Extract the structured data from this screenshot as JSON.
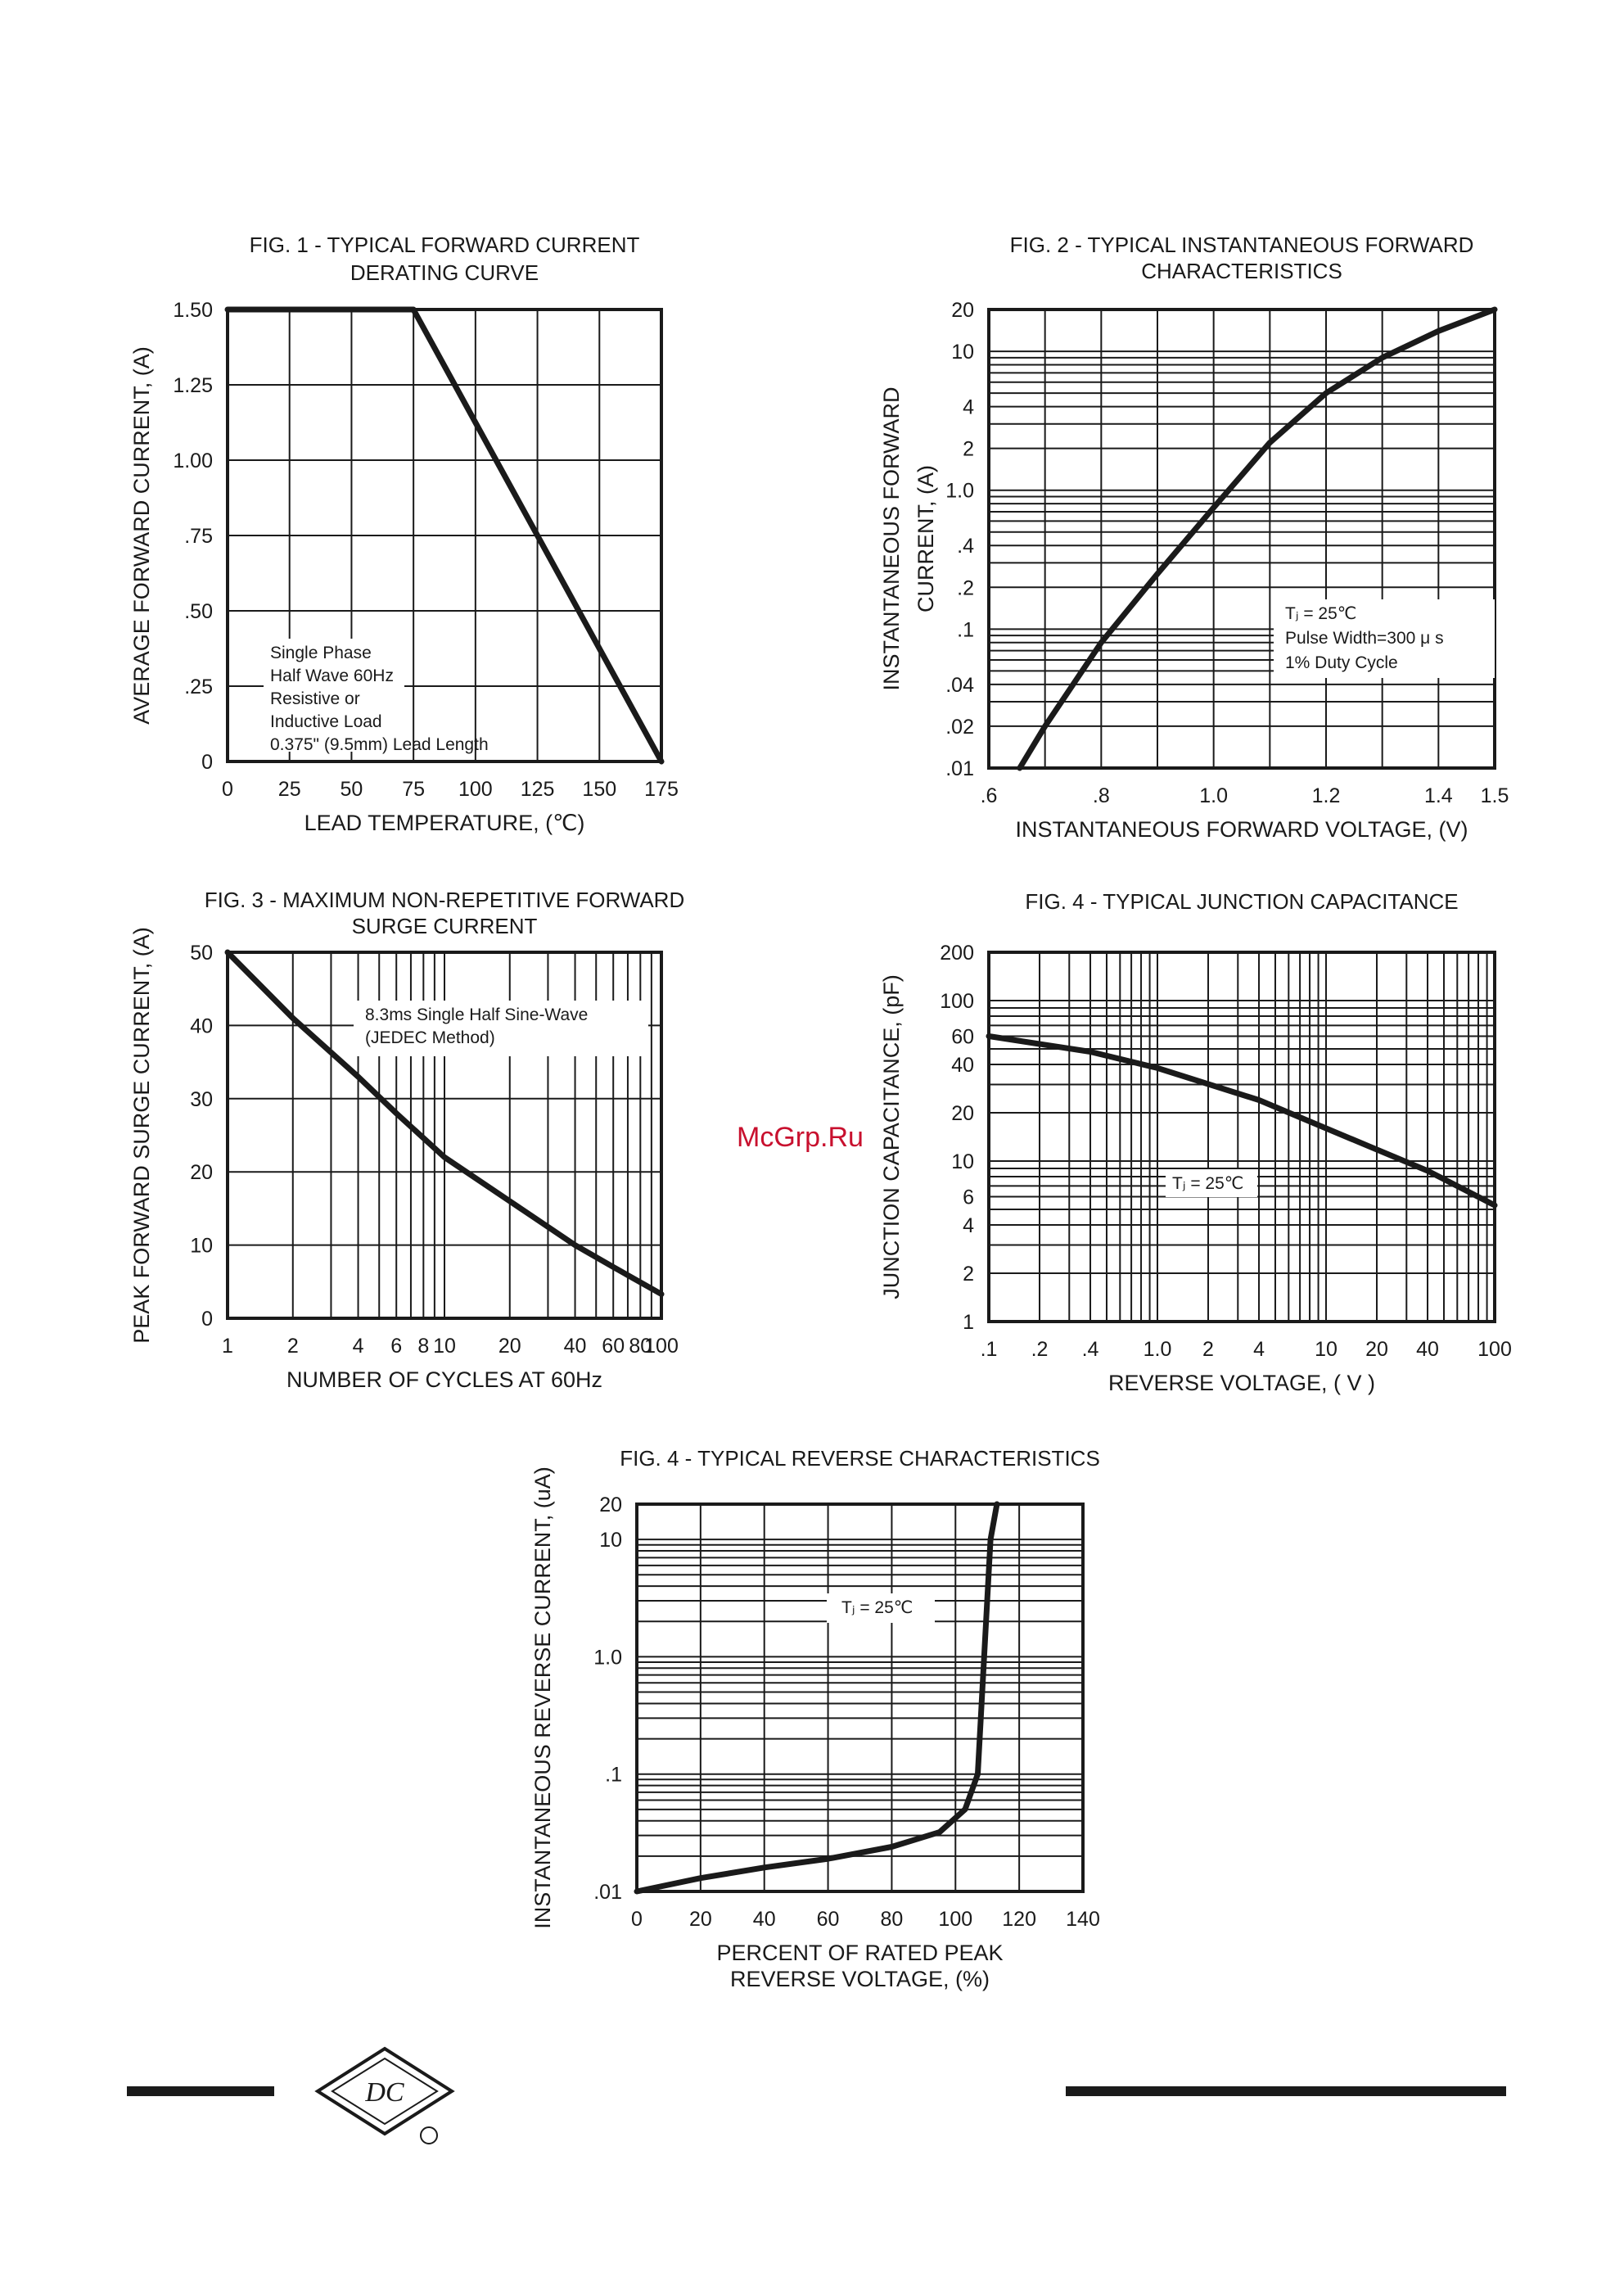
{
  "watermark": "McGrp.Ru",
  "logo": {
    "text": "DC",
    "registered_mark": "circle"
  },
  "colors": {
    "ink": "#1a1a1a",
    "watermark": "#c8102e",
    "background": "#ffffff"
  },
  "chart_data": [
    {
      "id": "fig1",
      "type": "line",
      "title": [
        "FIG. 1 - TYPICAL FORWARD CURRENT",
        "DERATING CURVE"
      ],
      "xlabel": "LEAD TEMPERATURE, (℃)",
      "ylabel": "AVERAGE FORWARD  CURRENT, (A)",
      "x_scale": "linear",
      "y_scale": "linear",
      "xlim": [
        0,
        175
      ],
      "ylim": [
        0,
        1.5
      ],
      "x_ticks": [
        0,
        25,
        50,
        75,
        100,
        125,
        150,
        175
      ],
      "x_tick_labels": [
        "0",
        "25",
        "50",
        "75",
        "100",
        "125",
        "150",
        "175"
      ],
      "y_ticks": [
        0,
        0.25,
        0.5,
        0.75,
        1.0,
        1.25,
        1.5
      ],
      "y_tick_labels": [
        "0",
        ".25",
        ".50",
        ".75",
        "1.00",
        "1.25",
        "1.50"
      ],
      "grid": "on",
      "annotation": [
        "Single Phase",
        "Half Wave 60Hz",
        "Resistive or",
        "Inductive Load",
        "0.375\" (9.5mm) Lead Length"
      ],
      "series": [
        {
          "x": [
            0,
            75,
            175
          ],
          "y": [
            1.5,
            1.5,
            0
          ]
        }
      ]
    },
    {
      "id": "fig2",
      "type": "line",
      "title": [
        "FIG. 2 - TYPICAL INSTANTANEOUS FORWARD",
        "CHARACTERISTICS"
      ],
      "xlabel": "INSTANTANEOUS FORWARD VOLTAGE, (V)",
      "ylabel": [
        "INSTANTANEOUS FORWARD",
        "CURRENT, (A)"
      ],
      "x_scale": "linear",
      "y_scale": "log",
      "xlim": [
        0.6,
        1.5
      ],
      "ylim": [
        0.01,
        20
      ],
      "x_ticks": [
        0.6,
        0.7,
        0.8,
        0.9,
        1.0,
        1.1,
        1.2,
        1.3,
        1.4,
        1.5
      ],
      "x_tick_labels": [
        ".6",
        "",
        ".8",
        "",
        "1.0",
        "",
        "1.2",
        "",
        "1.4",
        "1.5"
      ],
      "y_ticks": [
        0.01,
        0.02,
        0.04,
        0.1,
        0.2,
        0.4,
        1,
        2,
        4,
        10,
        20
      ],
      "y_tick_labels": [
        ".01",
        ".02",
        ".04",
        ".1",
        ".2",
        ".4",
        "1.0",
        "2",
        "4",
        "10",
        "20"
      ],
      "grid": "on",
      "annotation": [
        "Tⱼ = 25℃",
        "Pulse Width=300 μ s",
        "1% Duty Cycle"
      ],
      "series": [
        {
          "x": [
            0.655,
            0.7,
            0.8,
            0.9,
            1.0,
            1.1,
            1.2,
            1.3,
            1.4,
            1.5
          ],
          "y": [
            0.01,
            0.02,
            0.08,
            0.25,
            0.75,
            2.2,
            5.0,
            9.0,
            14.0,
            20.0
          ]
        }
      ]
    },
    {
      "id": "fig3",
      "type": "line",
      "title": [
        "FIG. 3 - MAXIMUM NON-REPETITIVE FORWARD",
        "SURGE CURRENT"
      ],
      "xlabel": "NUMBER OF CYCLES AT 60Hz",
      "ylabel": "PEAK FORWARD SURGE CURRENT, (A)",
      "x_scale": "log",
      "y_scale": "linear",
      "xlim": [
        1,
        100
      ],
      "ylim": [
        0,
        50
      ],
      "x_ticks": [
        1,
        2,
        4,
        6,
        8,
        10,
        20,
        40,
        60,
        80,
        100
      ],
      "x_tick_labels": [
        "1",
        "2",
        "4",
        "6",
        "8",
        "10",
        "20",
        "40",
        "60",
        "80",
        "100"
      ],
      "y_ticks": [
        0,
        10,
        20,
        30,
        40,
        50
      ],
      "y_tick_labels": [
        "0",
        "10",
        "20",
        "30",
        "40",
        "50"
      ],
      "grid": "on",
      "annotation": [
        "8.3ms Single Half Sine-Wave",
        "(JEDEC Method)"
      ],
      "series": [
        {
          "x": [
            1,
            2,
            4,
            6,
            10,
            20,
            40,
            60,
            100
          ],
          "y": [
            50,
            41,
            33,
            28,
            22,
            16,
            10,
            7,
            3.3
          ]
        }
      ]
    },
    {
      "id": "fig4",
      "type": "line",
      "title": [
        "FIG. 4 - TYPICAL JUNCTION CAPACITANCE"
      ],
      "xlabel": "REVERSE VOLTAGE, ( V )",
      "ylabel": "JUNCTION CAPACITANCE, (pF)",
      "x_scale": "log",
      "y_scale": "log",
      "xlim": [
        0.1,
        100
      ],
      "ylim": [
        1,
        200
      ],
      "x_ticks": [
        0.1,
        0.2,
        0.4,
        1,
        2,
        4,
        10,
        20,
        40,
        100
      ],
      "x_tick_labels": [
        ".1",
        ".2",
        ".4",
        "1.0",
        "2",
        "4",
        "10",
        "20",
        "40",
        "100"
      ],
      "y_ticks": [
        1,
        2,
        4,
        6,
        10,
        20,
        40,
        60,
        100,
        200
      ],
      "y_tick_labels": [
        "1",
        "2",
        "4",
        "6",
        "10",
        "20",
        "40",
        "60",
        "100",
        "200"
      ],
      "grid": "on",
      "annotation": [
        "Tⱼ = 25℃"
      ],
      "series": [
        {
          "x": [
            0.1,
            0.4,
            1,
            4,
            10,
            40,
            100
          ],
          "y": [
            60,
            48,
            38,
            24,
            16,
            8.7,
            5.3
          ]
        }
      ]
    },
    {
      "id": "fig5",
      "type": "line",
      "title": [
        "FIG. 4 - TYPICAL REVERSE CHARACTERISTICS"
      ],
      "xlabel": [
        "PERCENT OF RATED PEAK",
        "REVERSE VOLTAGE, (%)"
      ],
      "ylabel": "INSTANTANEOUS REVERSE CURRENT, (uA)",
      "x_scale": "linear",
      "y_scale": "log",
      "xlim": [
        0,
        140
      ],
      "ylim": [
        0.01,
        20
      ],
      "x_ticks": [
        0,
        20,
        40,
        60,
        80,
        100,
        120,
        140
      ],
      "x_tick_labels": [
        "0",
        "20",
        "40",
        "60",
        "80",
        "100",
        "120",
        "140"
      ],
      "y_ticks": [
        0.01,
        0.1,
        1.0,
        10,
        20
      ],
      "y_tick_labels": [
        ".01",
        ".1",
        "1.0",
        "10",
        "20"
      ],
      "grid": "on",
      "annotation": [
        "Tⱼ = 25℃"
      ],
      "series": [
        {
          "x": [
            0,
            20,
            40,
            60,
            80,
            95,
            103,
            107,
            109,
            111,
            113
          ],
          "y": [
            0.01,
            0.013,
            0.016,
            0.019,
            0.024,
            0.032,
            0.05,
            0.1,
            1.0,
            10,
            20
          ]
        }
      ]
    }
  ]
}
